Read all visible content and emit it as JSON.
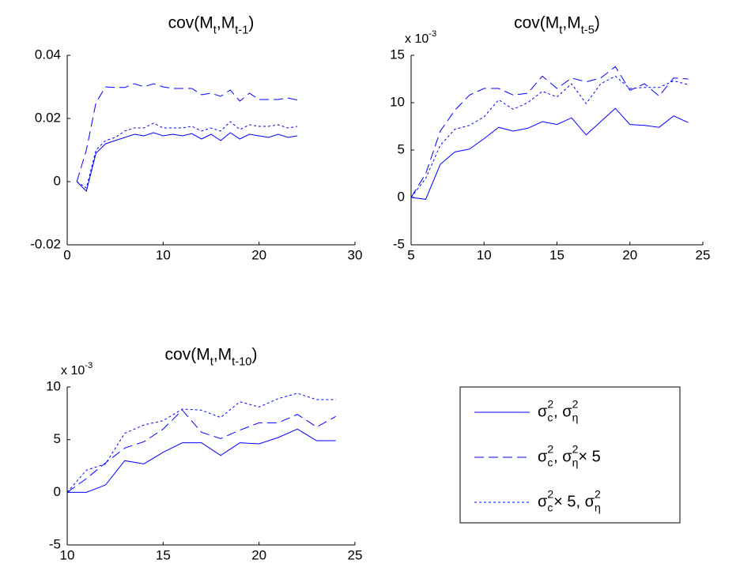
{
  "chart_data": [
    {
      "type": "line",
      "title": [
        {
          "text": "cov(M"
        },
        {
          "text": "t",
          "pos": "sub"
        },
        {
          "text": ",M"
        },
        {
          "text": "t-1",
          "pos": "sub"
        },
        {
          "text": ")"
        }
      ],
      "x": [
        1,
        2,
        3,
        4,
        5,
        6,
        7,
        8,
        9,
        10,
        11,
        12,
        13,
        14,
        15,
        16,
        17,
        18,
        19,
        20,
        21,
        22,
        23,
        24
      ],
      "xlim": [
        0,
        30
      ],
      "xticks": [
        0,
        10,
        20,
        30
      ],
      "ylim": [
        -0.02,
        0.04
      ],
      "yticks": [
        -0.02,
        0,
        0.02,
        0.04
      ],
      "series": [
        {
          "color": "#0000ff",
          "style": "solid",
          "values": [
            0,
            -0.003,
            0.009,
            0.012,
            0.013,
            0.014,
            0.015,
            0.0145,
            0.0155,
            0.0145,
            0.015,
            0.0145,
            0.0152,
            0.0135,
            0.015,
            0.013,
            0.0155,
            0.0135,
            0.015,
            0.0145,
            0.014,
            0.015,
            0.014,
            0.0145
          ]
        },
        {
          "color": "#0000ff",
          "style": "dashed",
          "values": [
            0,
            0.01,
            0.025,
            0.03,
            0.0298,
            0.0298,
            0.031,
            0.03,
            0.031,
            0.03,
            0.0295,
            0.0295,
            0.0295,
            0.0275,
            0.028,
            0.027,
            0.029,
            0.0255,
            0.028,
            0.026,
            0.026,
            0.026,
            0.0265,
            0.0258
          ]
        },
        {
          "color": "#0000ff",
          "style": "dotted",
          "values": [
            0,
            -0.002,
            0.01,
            0.013,
            0.014,
            0.016,
            0.017,
            0.017,
            0.0185,
            0.017,
            0.017,
            0.017,
            0.0175,
            0.016,
            0.017,
            0.016,
            0.019,
            0.0165,
            0.018,
            0.0175,
            0.0175,
            0.018,
            0.017,
            0.0175
          ]
        }
      ]
    },
    {
      "type": "line",
      "title": [
        {
          "text": "cov(M"
        },
        {
          "text": "t",
          "pos": "sub"
        },
        {
          "text": ",M"
        },
        {
          "text": "t-5",
          "pos": "sub"
        },
        {
          "text": ")"
        }
      ],
      "exponent_label": [
        {
          "text": "x 10"
        },
        {
          "text": "-3",
          "pos": "sup"
        }
      ],
      "x": [
        5,
        6,
        7,
        8,
        9,
        10,
        11,
        12,
        13,
        14,
        15,
        16,
        17,
        18,
        19,
        20,
        21,
        22,
        23,
        24
      ],
      "xlim": [
        5,
        25
      ],
      "xticks": [
        5,
        10,
        15,
        20,
        25
      ],
      "ylim": [
        -5,
        15
      ],
      "yticks": [
        -5,
        0,
        5,
        10,
        15
      ],
      "series": [
        {
          "color": "#0000ff",
          "style": "solid",
          "values": [
            0,
            -0.2,
            3.5,
            4.8,
            5.1,
            6.2,
            7.4,
            7.0,
            7.3,
            8.0,
            7.7,
            8.4,
            6.6,
            8.0,
            9.4,
            7.7,
            7.6,
            7.4,
            8.6,
            7.9
          ]
        },
        {
          "color": "#0000ff",
          "style": "dashed",
          "values": [
            0,
            2.5,
            7.0,
            9.2,
            10.8,
            11.5,
            11.5,
            10.8,
            11.0,
            12.8,
            11.5,
            12.6,
            12.2,
            12.6,
            13.8,
            11.3,
            12.0,
            10.7,
            12.6,
            12.5
          ]
        },
        {
          "color": "#0000ff",
          "style": "dotted",
          "values": [
            0,
            2.0,
            5.5,
            7.2,
            7.6,
            8.5,
            10.3,
            9.3,
            10.0,
            11.2,
            10.6,
            12.0,
            9.9,
            12.0,
            12.8,
            11.5,
            11.6,
            11.6,
            12.3,
            11.9
          ]
        }
      ]
    },
    {
      "type": "line",
      "title": [
        {
          "text": "cov(M"
        },
        {
          "text": "t",
          "pos": "sub"
        },
        {
          "text": ",M"
        },
        {
          "text": "t-10",
          "pos": "sub"
        },
        {
          "text": ")"
        }
      ],
      "exponent_label": [
        {
          "text": "x 10"
        },
        {
          "text": "-3",
          "pos": "sup"
        }
      ],
      "x": [
        10,
        11,
        12,
        13,
        14,
        15,
        16,
        17,
        18,
        19,
        20,
        21,
        22,
        23,
        24
      ],
      "xlim": [
        10,
        25
      ],
      "xticks": [
        10,
        15,
        20,
        25
      ],
      "ylim": [
        -5,
        10
      ],
      "yticks": [
        -5,
        0,
        5,
        10
      ],
      "series": [
        {
          "color": "#0000ff",
          "style": "solid",
          "values": [
            0,
            0,
            0.7,
            3.0,
            2.7,
            3.8,
            4.7,
            4.7,
            3.5,
            4.7,
            4.6,
            5.2,
            6.0,
            4.9,
            4.9
          ]
        },
        {
          "color": "#0000ff",
          "style": "dashed",
          "values": [
            0,
            1.3,
            2.8,
            4.2,
            4.8,
            6.0,
            7.8,
            5.7,
            5.1,
            5.9,
            6.6,
            6.6,
            7.4,
            6.2,
            7.2
          ]
        },
        {
          "color": "#0000ff",
          "style": "dotted",
          "values": [
            0,
            2.1,
            2.7,
            5.6,
            6.4,
            6.8,
            7.9,
            7.8,
            7.1,
            8.6,
            8.1,
            8.9,
            9.4,
            8.8,
            8.8
          ]
        }
      ]
    }
  ],
  "legend": {
    "color": "#0000ff",
    "entries": [
      {
        "style": "solid",
        "label": [
          {
            "text": "σ"
          },
          {
            "text": "2",
            "pos": "sup"
          },
          {
            "text": "c",
            "pos": "sub"
          },
          {
            "text": ", σ"
          },
          {
            "text": "2",
            "pos": "sup"
          },
          {
            "text": "η",
            "pos": "sub"
          }
        ]
      },
      {
        "style": "dashed",
        "label": [
          {
            "text": "σ"
          },
          {
            "text": "2",
            "pos": "sup"
          },
          {
            "text": "c",
            "pos": "sub"
          },
          {
            "text": ", σ"
          },
          {
            "text": "2",
            "pos": "sup"
          },
          {
            "text": "η",
            "pos": "sub"
          },
          {
            "text": "× 5"
          }
        ]
      },
      {
        "style": "dotted",
        "label": [
          {
            "text": "σ"
          },
          {
            "text": "2",
            "pos": "sup"
          },
          {
            "text": "c",
            "pos": "sub"
          },
          {
            "text": "× 5, σ"
          },
          {
            "text": "2",
            "pos": "sup"
          },
          {
            "text": "η",
            "pos": "sub"
          }
        ]
      }
    ]
  }
}
